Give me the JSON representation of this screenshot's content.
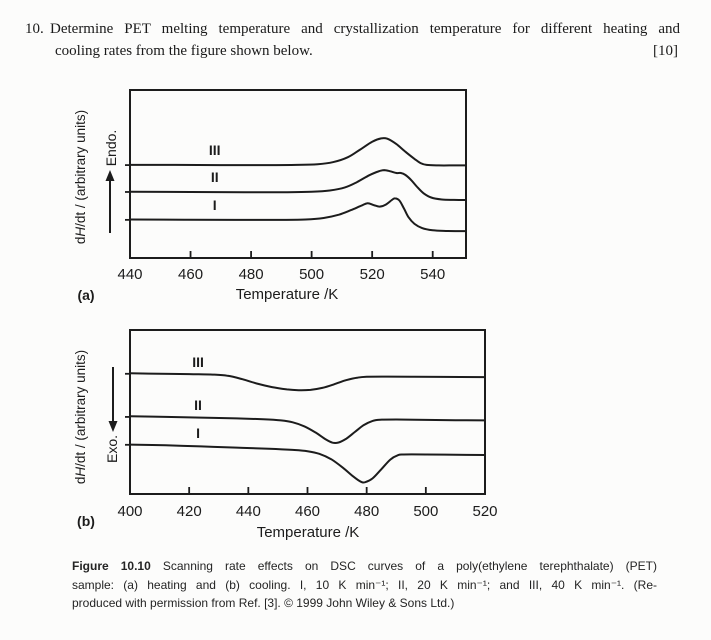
{
  "colors": {
    "ink": "#1c1c1c",
    "paper": "#fcfcfb"
  },
  "question": {
    "number": "10.",
    "line1": "Determine PET melting temperature and crystallization temperature for different heating and",
    "line2": "cooling rates from the figure shown below.",
    "marks": "[10]"
  },
  "figure": {
    "caption": {
      "label": "Figure 10.10",
      "line1_rest": "Scanning rate effects on DSC curves of a poly(ethylene terephthalate) (PET)",
      "line2": "sample: (a) heating and (b) cooling. I, 10 K min⁻¹; II, 20 K min⁻¹; and III, 40 K min⁻¹. (Re-",
      "line3": "produced with permission from Ref. [3]. © 1999 John Wiley & Sons Ltd.)"
    }
  },
  "chart_data": [
    {
      "id": "a",
      "type": "line",
      "mode": "heating",
      "panel_label": "(a)",
      "xlabel": "Temperature /K",
      "ylabel": "dH/dt / (arbitrary units)",
      "ylabel_parts": {
        "pre": "d",
        "italic": "H",
        "post": "/dt / (arbitrary units)"
      },
      "direction_label": "Endo.",
      "arrow": "up",
      "xlim": [
        440,
        551
      ],
      "x_ticks": [
        440,
        460,
        480,
        500,
        520,
        540
      ],
      "y_units": "arbitrary units; curves vertically offset, y stored as fraction of panel height above x-axis",
      "series": [
        {
          "name": "III",
          "rate": "40 K min⁻¹",
          "peaks_K": [
            523
          ],
          "label_T": 468,
          "baseline_v": 0.553,
          "points": [
            [
              440,
              0.554
            ],
            [
              455,
              0.554
            ],
            [
              470,
              0.553
            ],
            [
              485,
              0.553
            ],
            [
              495,
              0.554
            ],
            [
              502,
              0.558
            ],
            [
              507,
              0.57
            ],
            [
              512,
              0.6
            ],
            [
              516,
              0.645
            ],
            [
              520,
              0.692
            ],
            [
              523,
              0.712
            ],
            [
              525,
              0.71
            ],
            [
              528,
              0.678
            ],
            [
              531,
              0.632
            ],
            [
              534,
              0.59
            ],
            [
              536,
              0.565
            ],
            [
              538,
              0.554
            ],
            [
              542,
              0.551
            ],
            [
              547,
              0.551
            ],
            [
              551,
              0.551
            ]
          ]
        },
        {
          "name": "II",
          "rate": "20 K min⁻¹",
          "peaks_K": [
            524,
            529
          ],
          "label_T": 468,
          "baseline_v": 0.393,
          "points": [
            [
              440,
              0.394
            ],
            [
              460,
              0.393
            ],
            [
              478,
              0.391
            ],
            [
              492,
              0.391
            ],
            [
              500,
              0.394
            ],
            [
              506,
              0.402
            ],
            [
              511,
              0.42
            ],
            [
              515,
              0.452
            ],
            [
              519,
              0.492
            ],
            [
              522,
              0.515
            ],
            [
              524,
              0.523
            ],
            [
              526,
              0.516
            ],
            [
              528,
              0.506
            ],
            [
              529.5,
              0.506
            ],
            [
              531,
              0.494
            ],
            [
              533,
              0.462
            ],
            [
              535,
              0.42
            ],
            [
              537,
              0.385
            ],
            [
              539.5,
              0.36
            ],
            [
              543,
              0.348
            ],
            [
              547,
              0.346
            ],
            [
              551,
              0.345
            ]
          ]
        },
        {
          "name": "I",
          "rate": "10 K min⁻¹",
          "peaks_K": [
            518,
            527
          ],
          "label_T": 468,
          "baseline_v": 0.227,
          "points": [
            [
              440,
              0.229
            ],
            [
              458,
              0.228
            ],
            [
              475,
              0.227
            ],
            [
              490,
              0.227
            ],
            [
              498,
              0.229
            ],
            [
              504,
              0.238
            ],
            [
              509,
              0.258
            ],
            [
              513,
              0.285
            ],
            [
              516.5,
              0.312
            ],
            [
              518.5,
              0.326
            ],
            [
              520.5,
              0.315
            ],
            [
              522.5,
              0.306
            ],
            [
              524.5,
              0.318
            ],
            [
              526.5,
              0.345
            ],
            [
              527.5,
              0.355
            ],
            [
              529,
              0.342
            ],
            [
              530.5,
              0.295
            ],
            [
              532,
              0.243
            ],
            [
              534,
              0.203
            ],
            [
              536.5,
              0.178
            ],
            [
              540,
              0.165
            ],
            [
              545,
              0.161
            ],
            [
              551,
              0.16
            ]
          ]
        }
      ]
    },
    {
      "id": "b",
      "type": "line",
      "mode": "cooling",
      "panel_label": "(b)",
      "xlabel": "Temperature /K",
      "ylabel": "dH/dt / (arbitrary units)",
      "ylabel_parts": {
        "pre": "d",
        "italic": "H",
        "post": "/dt / (arbitrary units)"
      },
      "direction_label": "Exo.",
      "arrow": "down",
      "xlim": [
        400,
        520
      ],
      "x_ticks": [
        400,
        420,
        440,
        460,
        480,
        500,
        520
      ],
      "y_units": "arbitrary units; exothermic crystallization dips point downward, y stored as fraction of panel height above x-axis",
      "series": [
        {
          "name": "III",
          "rate": "40 K min⁻¹",
          "peaks_K": [
            456
          ],
          "label_T": 423,
          "baseline_v": 0.733,
          "points": [
            [
              400,
              0.736
            ],
            [
              410,
              0.733
            ],
            [
              420,
              0.731
            ],
            [
              428,
              0.728
            ],
            [
              433,
              0.721
            ],
            [
              438,
              0.7
            ],
            [
              443,
              0.673
            ],
            [
              448,
              0.652
            ],
            [
              453,
              0.638
            ],
            [
              457,
              0.633
            ],
            [
              461,
              0.635
            ],
            [
              465,
              0.647
            ],
            [
              469,
              0.669
            ],
            [
              473,
              0.694
            ],
            [
              477,
              0.71
            ],
            [
              480,
              0.715
            ],
            [
              487,
              0.716
            ],
            [
              495,
              0.715
            ],
            [
              505,
              0.714
            ],
            [
              520,
              0.713
            ]
          ]
        },
        {
          "name": "II",
          "rate": "20 K min⁻¹",
          "peaks_K": [
            468
          ],
          "label_T": 423,
          "baseline_v": 0.47,
          "points": [
            [
              400,
              0.474
            ],
            [
              412,
              0.47
            ],
            [
              424,
              0.466
            ],
            [
              436,
              0.461
            ],
            [
              445,
              0.456
            ],
            [
              451,
              0.449
            ],
            [
              455,
              0.437
            ],
            [
              459,
              0.412
            ],
            [
              463,
              0.372
            ],
            [
              466,
              0.335
            ],
            [
              468.5,
              0.313
            ],
            [
              470.5,
              0.314
            ],
            [
              473,
              0.336
            ],
            [
              476,
              0.378
            ],
            [
              479,
              0.42
            ],
            [
              482,
              0.446
            ],
            [
              484.5,
              0.453
            ],
            [
              490,
              0.454
            ],
            [
              500,
              0.452
            ],
            [
              510,
              0.45
            ],
            [
              520,
              0.449
            ]
          ]
        },
        {
          "name": "I",
          "rate": "10 K min⁻¹",
          "peaks_K": [
            478
          ],
          "label_T": 423,
          "baseline_v": 0.3,
          "points": [
            [
              400,
              0.301
            ],
            [
              412,
              0.297
            ],
            [
              424,
              0.29
            ],
            [
              436,
              0.283
            ],
            [
              447,
              0.276
            ],
            [
              455,
              0.269
            ],
            [
              460,
              0.261
            ],
            [
              464,
              0.245
            ],
            [
              468,
              0.212
            ],
            [
              472,
              0.16
            ],
            [
              475.5,
              0.106
            ],
            [
              478,
              0.075
            ],
            [
              479.5,
              0.072
            ],
            [
              482,
              0.095
            ],
            [
              485,
              0.152
            ],
            [
              488,
              0.21
            ],
            [
              490.5,
              0.236
            ],
            [
              492.5,
              0.241
            ],
            [
              500,
              0.241
            ],
            [
              510,
              0.239
            ],
            [
              520,
              0.238
            ]
          ]
        }
      ]
    }
  ]
}
